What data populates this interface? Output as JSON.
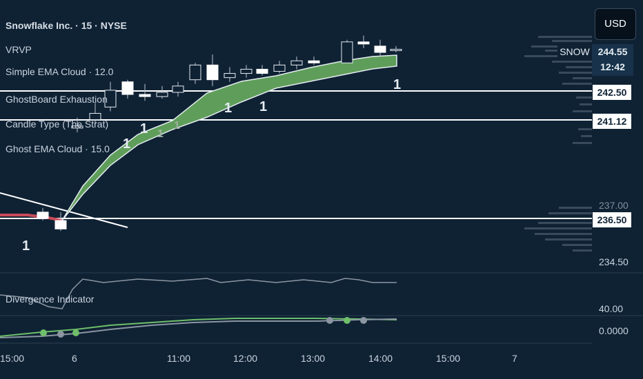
{
  "legend": {
    "title": "Snowflake Inc. · 15 · NYSE",
    "items": [
      "VRVP",
      "Simple EMA Cloud · 12.0",
      "GhostBoard Exhaustion",
      "Candle Type (The Strat)",
      "Ghost EMA Cloud · 15.0"
    ],
    "divergence": "Divergence Indicator"
  },
  "currency": "USD",
  "symbol_badge": {
    "symbol": "SNOW",
    "price": "244.55",
    "countdown": "12:42"
  },
  "price_levels": [
    "242.50",
    "241.12",
    "236.50"
  ],
  "axis_labels": {
    "top_partial": "237.00",
    "lower": "234.50",
    "div": "40.00",
    "osc": "0.0000"
  },
  "time_axis": [
    "15:00",
    "6",
    "11:00",
    "12:00",
    "13:00",
    "14:00",
    "15:00",
    "7"
  ],
  "markers": [
    "1",
    "1",
    "1",
    "1",
    "1",
    "1",
    "1",
    "1"
  ],
  "chart_data": {
    "type": "candlestick",
    "candles": [
      {
        "o": 236.8,
        "h": 237.0,
        "c": 236.5,
        "l": 236.4
      },
      {
        "o": 236.4,
        "h": 236.8,
        "c": 236.0,
        "l": 235.9
      },
      {
        "o": 240.8,
        "h": 241.3,
        "c": 240.9,
        "l": 240.6
      },
      {
        "o": 241.2,
        "h": 242.0,
        "c": 241.5,
        "l": 241.0
      },
      {
        "o": 241.8,
        "h": 243.0,
        "c": 242.6,
        "l": 241.6
      },
      {
        "o": 243.0,
        "h": 243.1,
        "c": 242.4,
        "l": 242.2
      },
      {
        "o": 242.4,
        "h": 242.9,
        "c": 242.3,
        "l": 242.1
      },
      {
        "o": 242.3,
        "h": 242.8,
        "c": 242.5,
        "l": 242.2
      },
      {
        "o": 242.5,
        "h": 243.0,
        "c": 242.8,
        "l": 242.3
      },
      {
        "o": 243.1,
        "h": 243.9,
        "c": 243.8,
        "l": 242.9
      },
      {
        "o": 243.8,
        "h": 244.3,
        "c": 243.1,
        "l": 242.8
      },
      {
        "o": 243.2,
        "h": 243.7,
        "c": 243.4,
        "l": 243.0
      },
      {
        "o": 243.4,
        "h": 243.8,
        "c": 243.6,
        "l": 243.2
      },
      {
        "o": 243.6,
        "h": 243.8,
        "c": 243.4,
        "l": 243.3
      },
      {
        "o": 243.5,
        "h": 244.0,
        "c": 243.8,
        "l": 243.4
      },
      {
        "o": 243.8,
        "h": 244.2,
        "c": 244.0,
        "l": 243.6
      },
      {
        "o": 244.0,
        "h": 244.2,
        "c": 243.9,
        "l": 243.8
      },
      {
        "o": 243.9,
        "h": 245.0,
        "c": 244.9,
        "l": 243.9
      },
      {
        "o": 244.9,
        "h": 245.2,
        "c": 244.8,
        "l": 244.6
      },
      {
        "o": 244.7,
        "h": 245.0,
        "c": 244.4,
        "l": 244.2
      },
      {
        "o": 244.55,
        "h": 244.7,
        "c": 244.55,
        "l": 244.4
      }
    ],
    "ylim": [
      234.0,
      246.2
    ]
  }
}
